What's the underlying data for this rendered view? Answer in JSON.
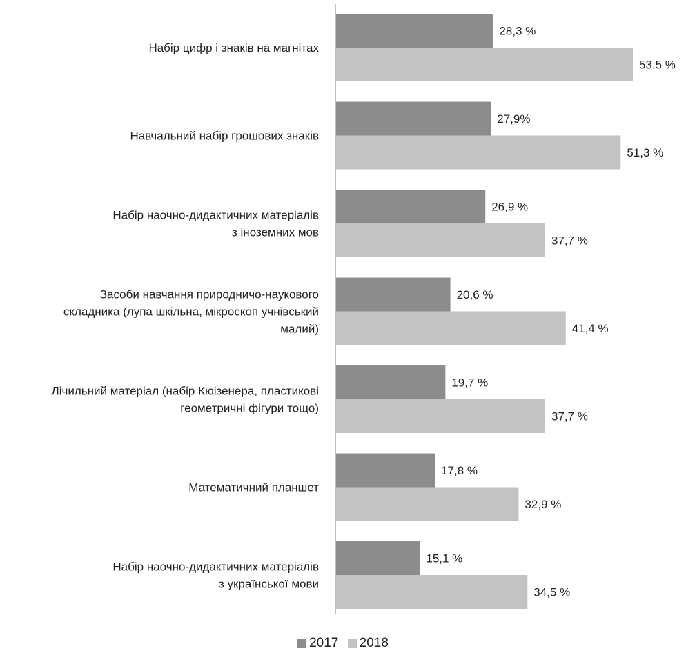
{
  "chart_data": {
    "type": "bar",
    "orientation": "horizontal",
    "categories": [
      [
        "Набір цифр і знаків на магнітах"
      ],
      [
        "Навчальний набір грошових знаків"
      ],
      [
        "Набір наочно-дидактичних матеріалів",
        "з іноземних мов"
      ],
      [
        "Засоби навчання природничо-наукового",
        "складника (лупа шкільна, мікроскоп учнівський",
        "малий)"
      ],
      [
        "Лічильний матеріал (набір Кюізенера, пластикові",
        "геометричні фігури тощо)"
      ],
      [
        "Математичний планшет"
      ],
      [
        "Набір наочно-дидактичних матеріалів",
        "з української мови"
      ]
    ],
    "series": [
      {
        "name": "2017",
        "color": "#8c8c8c",
        "values": [
          28.3,
          27.9,
          26.9,
          20.6,
          19.7,
          17.8,
          15.1
        ],
        "labels": [
          "28,3 %",
          "27,9%",
          "26,9 %",
          "20,6 %",
          "19,7 %",
          "17,8 %",
          "15,1 %"
        ]
      },
      {
        "name": "2018",
        "color": "#c3c3c3",
        "values": [
          53.5,
          51.3,
          37.7,
          41.4,
          37.7,
          32.9,
          34.5
        ],
        "labels": [
          "53,5 %",
          "51,3 %",
          "37,7 %",
          "41,4 %",
          "37,7 %",
          "32,9 %",
          "34,5 %"
        ]
      }
    ],
    "xlim": [
      0,
      60
    ],
    "grid": false,
    "legend_position": "bottom-center",
    "title": "",
    "xlabel": "",
    "ylabel": ""
  }
}
